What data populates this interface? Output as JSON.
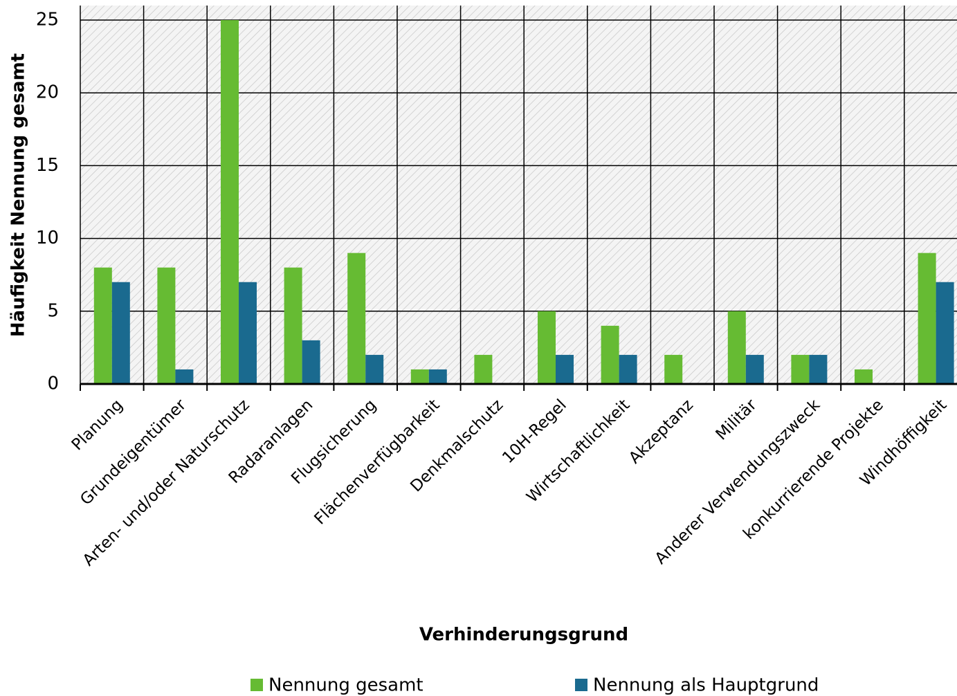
{
  "chart_data": {
    "type": "bar",
    "x_label": "Verhinderungsgrund",
    "y_label": "Häufigkeit Nennung gesamt",
    "categories": [
      "Planung",
      "Grundeigentümer",
      "Arten- und/oder Naturschutz",
      "Radaranlagen",
      "Flugsicherung",
      "Flächenverfügbarkeit",
      "Denkmalschutz",
      "10H-Regel",
      "Wirtschaftlichkeit",
      "Akzeptanz",
      "Militär",
      "Anderer Verwendungszweck",
      "konkurrierende Projekte",
      "Windhöffigkeit"
    ],
    "series": [
      {
        "name": "Nennung gesamt",
        "color": "#66bb33",
        "values": [
          8,
          8,
          25,
          8,
          9,
          1,
          2,
          5,
          4,
          2,
          5,
          2,
          1,
          9
        ]
      },
      {
        "name": "Nennung als Hauptgrund",
        "color": "#1a6a8f",
        "values": [
          7,
          1,
          7,
          3,
          2,
          1,
          0,
          2,
          2,
          0,
          2,
          2,
          0,
          7
        ]
      }
    ],
    "ylim": [
      0,
      26
    ],
    "yticks": [
      0,
      5,
      10,
      15,
      20,
      25
    ],
    "grid": true,
    "legend": "bottom"
  }
}
